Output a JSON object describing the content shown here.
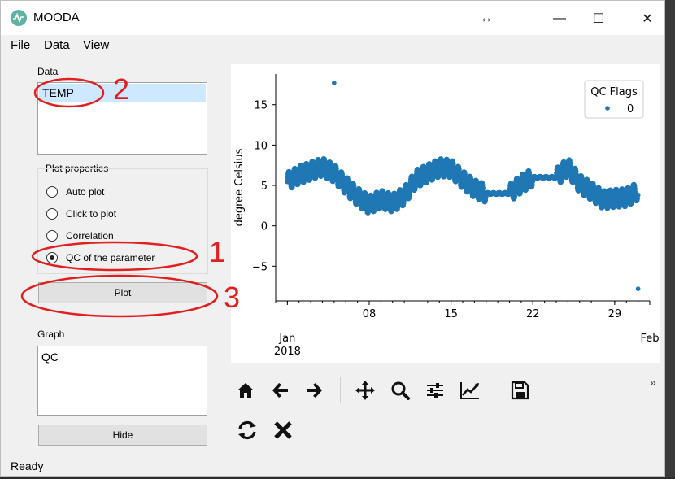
{
  "window": {
    "title": "MOODA",
    "minimize": "—",
    "maximize": "☐",
    "close": "✕",
    "resize_cursor": "↔"
  },
  "menu": [
    {
      "label": "File"
    },
    {
      "label": "Data"
    },
    {
      "label": "View"
    }
  ],
  "data_panel": {
    "label": "Data",
    "items": [
      {
        "text": "TEMP",
        "selected": true
      }
    ]
  },
  "plot_properties": {
    "label": "Plot properties",
    "options": [
      {
        "label": "Auto plot",
        "checked": false
      },
      {
        "label": "Click to plot",
        "checked": false
      },
      {
        "label": "Correlation",
        "checked": false
      },
      {
        "label": "QC of the parameter",
        "checked": true
      }
    ]
  },
  "plot_button": "Plot",
  "graph_panel": {
    "label": "Graph",
    "items": [
      {
        "text": "QC"
      }
    ]
  },
  "hide_button": "Hide",
  "status": "Ready",
  "annotations": [
    "1",
    "2",
    "3"
  ],
  "toolbar": {
    "icons": [
      "home-icon",
      "back-arrow-icon",
      "forward-arrow-icon",
      "pan-icon",
      "zoom-icon",
      "configure-subplots-icon",
      "edit-axis-icon",
      "save-icon",
      "refresh-icon",
      "clear-icon"
    ],
    "overflow": "»"
  },
  "colors": {
    "series": "#1f77b4",
    "annotation": "#e02020"
  },
  "chart_data": {
    "type": "scatter",
    "ylabel": "degree Celsius",
    "xlabel": "",
    "x_ticks": [
      "Jan\n2018",
      "08",
      "15",
      "22",
      "29",
      "Feb"
    ],
    "x_tick_dates": [
      "2018-01-01",
      "2018-01-08",
      "2018-01-15",
      "2018-01-22",
      "2018-01-29",
      "2018-02-01"
    ],
    "y_ticks": [
      15,
      10,
      5,
      0,
      -5
    ],
    "ylim": [
      -9.3,
      18.8
    ],
    "xlim": [
      "2017-12-31",
      "2018-02-01"
    ],
    "legend": {
      "title": "QC Flags",
      "entries": [
        "0"
      ],
      "placement": "top-right"
    },
    "grid": false,
    "series": [
      {
        "name": "0",
        "x": [
          "2018-01-01",
          "2018-01-02",
          "2018-01-03",
          "2018-01-04",
          "2018-01-05",
          "2018-01-06",
          "2018-01-07",
          "2018-01-08",
          "2018-01-09",
          "2018-01-10",
          "2018-01-11",
          "2018-01-12",
          "2018-01-13",
          "2018-01-14",
          "2018-01-15",
          "2018-01-16",
          "2018-01-17",
          "2018-01-18",
          "2018-01-19",
          "2018-01-20",
          "2018-01-21",
          "2018-01-22",
          "2018-01-23",
          "2018-01-24",
          "2018-01-25",
          "2018-01-26",
          "2018-01-27",
          "2018-01-28",
          "2018-01-29",
          "2018-01-30",
          "2018-01-31"
        ],
        "y": [
          5.5,
          6.3,
          6.8,
          7.3,
          6.5,
          5.0,
          3.6,
          2.6,
          3.3,
          2.8,
          3.7,
          5.8,
          6.5,
          7.2,
          7.1,
          5.7,
          4.6,
          4.0,
          4.0,
          4.0,
          5.2,
          6.0,
          6.0,
          6.0,
          7.3,
          5.2,
          4.3,
          3.2,
          3.4,
          3.5,
          4.3
        ]
      }
    ],
    "outliers": [
      {
        "x": "2018-01-05",
        "y": 17.7
      },
      {
        "x": "2018-01-31",
        "y": -7.8
      }
    ]
  }
}
